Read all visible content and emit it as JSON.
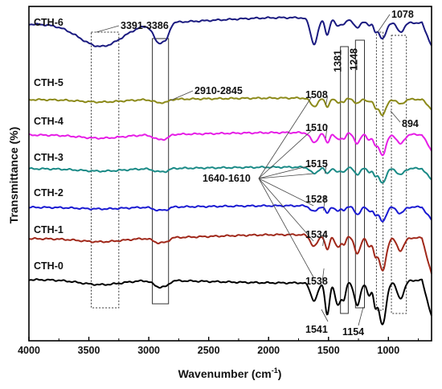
{
  "chart_data": {
    "type": "line",
    "xlabel": "Wavenumber (cm",
    "xlabel_sup": "-1",
    "xlabel_end": ")",
    "ylabel": "Transmittance (%)",
    "xlim": [
      4000,
      640
    ],
    "x_reversed": true,
    "x_ticks": [
      4000,
      3500,
      3000,
      2500,
      2000,
      1500,
      1000
    ],
    "series": [
      {
        "name": "CTH-6",
        "color": "#1a1a80"
      },
      {
        "name": "CTH-5",
        "color": "#8c8a1a"
      },
      {
        "name": "CTH-4",
        "color": "#e61ee6"
      },
      {
        "name": "CTH-3",
        "color": "#1a8a86"
      },
      {
        "name": "CTH-2",
        "color": "#1a1ad2"
      },
      {
        "name": "CTH-1",
        "color": "#a0281a"
      },
      {
        "name": "CTH-0",
        "color": "#000000"
      }
    ],
    "annotations": [
      {
        "text": "3391-3386",
        "kind": "band",
        "range": [
          3480,
          3250
        ]
      },
      {
        "text": "2910-2845",
        "kind": "band",
        "range": [
          2970,
          2835
        ]
      },
      {
        "text": "1381",
        "kind": "band",
        "range": [
          1400,
          1335
        ]
      },
      {
        "text": "1248",
        "kind": "band",
        "range": [
          1275,
          1200
        ]
      },
      {
        "text": "1078",
        "kind": "band",
        "range": [
          1100,
          1045
        ]
      },
      {
        "text": "894",
        "kind": "band",
        "range": [
          975,
          850
        ]
      },
      {
        "text": "1640-1610",
        "kind": "band",
        "range": [
          1650,
          1590
        ]
      },
      {
        "text": "1508",
        "kind": "peak",
        "x": 1508
      },
      {
        "text": "1510",
        "kind": "peak",
        "x": 1510
      },
      {
        "text": "1515",
        "kind": "peak",
        "x": 1515
      },
      {
        "text": "1528",
        "kind": "peak",
        "x": 1528
      },
      {
        "text": "1534",
        "kind": "peak",
        "x": 1534
      },
      {
        "text": "1538",
        "kind": "peak",
        "x": 1538
      },
      {
        "text": "1541",
        "kind": "peak",
        "x": 1541
      },
      {
        "text": "1154",
        "kind": "peak",
        "x": 1154
      }
    ]
  }
}
